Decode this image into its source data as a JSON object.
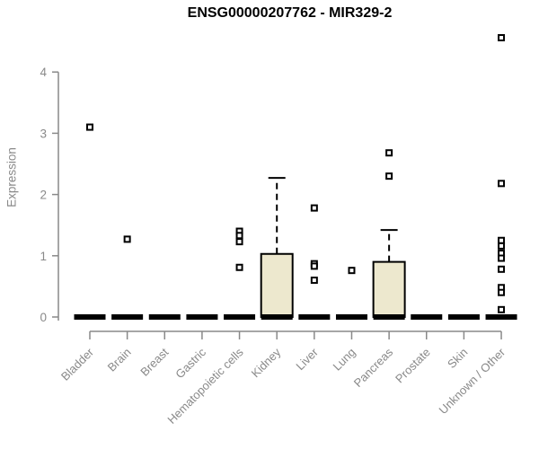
{
  "window": {
    "title": "ENSG00000207762 - MIR329-2"
  },
  "chart_data": {
    "type": "boxplot",
    "title": "ENSG00000207762 - MIR329-2",
    "xlabel": "",
    "ylabel": "Expression",
    "ylim": [
      0,
      4.6
    ],
    "y_ticks": [
      0,
      1,
      2,
      3,
      4
    ],
    "grid": false,
    "legend": false,
    "categories": [
      "Bladder",
      "Brain",
      "Breast",
      "Gastric",
      "Hematopoietic cells",
      "Kidney",
      "Liver",
      "Lung",
      "Pancreas",
      "Prostate",
      "Skin",
      "Unknown / Other"
    ],
    "boxes": [
      {
        "category": "Bladder",
        "median": 0,
        "q1": 0,
        "q3": 0,
        "whisker_low": 0,
        "whisker_high": 0,
        "outliers": [
          3.1
        ]
      },
      {
        "category": "Brain",
        "median": 0,
        "q1": 0,
        "q3": 0,
        "whisker_low": 0,
        "whisker_high": 0,
        "outliers": [
          1.27
        ]
      },
      {
        "category": "Breast",
        "median": 0,
        "q1": 0,
        "q3": 0,
        "whisker_low": 0,
        "whisker_high": 0,
        "outliers": []
      },
      {
        "category": "Gastric",
        "median": 0,
        "q1": 0,
        "q3": 0,
        "whisker_low": 0,
        "whisker_high": 0,
        "outliers": []
      },
      {
        "category": "Hematopoietic cells",
        "median": 0,
        "q1": 0,
        "q3": 0,
        "whisker_low": 0,
        "whisker_high": 0,
        "outliers": [
          1.4,
          1.33,
          1.23,
          0.81
        ]
      },
      {
        "category": "Kidney",
        "median": 0,
        "q1": 0,
        "q3": 1.03,
        "whisker_low": 0,
        "whisker_high": 2.27,
        "outliers": []
      },
      {
        "category": "Liver",
        "median": 0,
        "q1": 0,
        "q3": 0,
        "whisker_low": 0,
        "whisker_high": 0,
        "outliers": [
          1.78,
          0.87,
          0.83,
          0.6
        ]
      },
      {
        "category": "Lung",
        "median": 0,
        "q1": 0,
        "q3": 0,
        "whisker_low": 0,
        "whisker_high": 0,
        "outliers": [
          0.76
        ]
      },
      {
        "category": "Pancreas",
        "median": 0,
        "q1": 0,
        "q3": 0.9,
        "whisker_low": 0,
        "whisker_high": 1.42,
        "outliers": [
          2.68,
          2.3
        ]
      },
      {
        "category": "Prostate",
        "median": 0,
        "q1": 0,
        "q3": 0,
        "whisker_low": 0,
        "whisker_high": 0,
        "outliers": []
      },
      {
        "category": "Skin",
        "median": 0,
        "q1": 0,
        "q3": 0,
        "whisker_low": 0,
        "whisker_high": 0,
        "outliers": []
      },
      {
        "category": "Unknown / Other",
        "median": 0,
        "q1": 0,
        "q3": 0,
        "whisker_low": 0,
        "whisker_high": 0,
        "outliers": [
          4.56,
          2.18,
          1.25,
          1.16,
          1.04,
          0.96,
          0.78,
          0.48,
          0.4,
          0.12
        ]
      }
    ],
    "colors": {
      "box_fill": "#EDE8CE",
      "box_stroke": "#000000",
      "median_color": "#000000",
      "outlier_stroke": "#000000",
      "axis_color": "#898989",
      "tick_label_color": "#898989",
      "title_color": "#000000"
    }
  }
}
